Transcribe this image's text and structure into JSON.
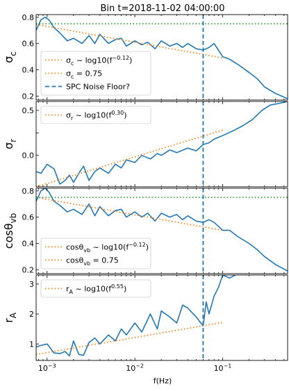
{
  "title": "Bin t=2018-11-02 04:00:00",
  "xlabel": "f(Hz)",
  "colors": {
    "signal": "#1f77b4",
    "fit": "#ff7f0e",
    "reference": "#2ca02c",
    "noise_floor": "#1f77b4"
  },
  "chart_data": [
    {
      "type": "line",
      "ylabel": "σ_c",
      "x_scale": "log",
      "xlim": [
        0.00075,
        0.55
      ],
      "ylim": [
        0.17,
        0.82
      ],
      "yticks": [
        0.2,
        0.4,
        0.6,
        0.8
      ],
      "ytick_labels": [
        "0.2",
        "0.4",
        "0.6",
        "0.8"
      ],
      "legend": [
        "σ_c ~ log10(f^-0.12)",
        "σ_c = 0.75",
        "SPC Noise Floor?"
      ],
      "legend_position": "lower-left",
      "series": [
        {
          "kind": "signal",
          "x": [
            0.00075,
            0.00085,
            0.00095,
            0.00105,
            0.0012,
            0.0014,
            0.0017,
            0.002,
            0.0025,
            0.003,
            0.0035,
            0.004,
            0.005,
            0.006,
            0.007,
            0.008,
            0.01,
            0.012,
            0.014,
            0.017,
            0.02,
            0.025,
            0.03,
            0.035,
            0.04,
            0.05,
            0.06,
            0.07,
            0.08,
            0.1,
            0.12,
            0.15,
            0.2,
            0.25,
            0.3,
            0.4,
            0.55
          ],
          "y": [
            0.7,
            0.78,
            0.8,
            0.78,
            0.72,
            0.68,
            0.62,
            0.64,
            0.6,
            0.66,
            0.6,
            0.67,
            0.6,
            0.63,
            0.64,
            0.58,
            0.62,
            0.59,
            0.61,
            0.56,
            0.62,
            0.58,
            0.6,
            0.57,
            0.6,
            0.56,
            0.55,
            0.57,
            0.6,
            0.5,
            0.48,
            0.44,
            0.38,
            0.33,
            0.27,
            0.22,
            0.18
          ]
        },
        {
          "kind": "fit",
          "coef": -0.12,
          "x": [
            0.00075,
            0.1
          ],
          "y": [
            0.745,
            0.49
          ]
        },
        {
          "kind": "reference",
          "y": 0.75
        }
      ],
      "vline": 0.06
    },
    {
      "type": "line",
      "ylabel": "σ_r",
      "x_scale": "log",
      "xlim": [
        0.00075,
        0.55
      ],
      "ylim": [
        -0.35,
        0.6
      ],
      "yticks": [
        0.0,
        0.25,
        0.5
      ],
      "ytick_labels": [
        "0.0",
        "",
        "0.5"
      ],
      "legend": [
        "σ_r ~ log10(f^0.30)"
      ],
      "legend_position": "upper-left",
      "series": [
        {
          "kind": "signal",
          "x": [
            0.00075,
            0.00085,
            0.001,
            0.0012,
            0.0014,
            0.0016,
            0.0018,
            0.002,
            0.0023,
            0.0026,
            0.003,
            0.0035,
            0.004,
            0.005,
            0.006,
            0.007,
            0.008,
            0.01,
            0.012,
            0.015,
            0.018,
            0.02,
            0.025,
            0.03,
            0.04,
            0.05,
            0.06,
            0.07,
            0.08,
            0.1,
            0.13,
            0.17,
            0.22,
            0.28,
            0.35,
            0.45,
            0.55
          ],
          "y": [
            -0.18,
            -0.2,
            -0.1,
            -0.15,
            -0.32,
            -0.28,
            -0.22,
            -0.3,
            -0.2,
            -0.12,
            -0.28,
            -0.18,
            -0.14,
            -0.2,
            -0.1,
            -0.14,
            -0.05,
            -0.08,
            0.0,
            -0.04,
            0.02,
            0.0,
            0.06,
            0.03,
            0.08,
            0.05,
            0.12,
            0.14,
            0.18,
            0.22,
            0.27,
            0.33,
            0.4,
            0.5,
            0.56,
            0.58,
            0.6
          ]
        },
        {
          "kind": "fit",
          "coef": 0.3,
          "x": [
            0.00075,
            0.1
          ],
          "y": [
            -0.35,
            0.28
          ]
        }
      ],
      "vline": 0.06
    },
    {
      "type": "line",
      "ylabel": "cosθ_vb",
      "x_scale": "log",
      "xlim": [
        0.00075,
        0.55
      ],
      "ylim": [
        0.17,
        0.82
      ],
      "yticks": [
        0.2,
        0.4,
        0.6,
        0.8
      ],
      "ytick_labels": [
        "0.2",
        "0.4",
        "0.6",
        "0.8"
      ],
      "legend": [
        "cosθ_vb ~ log10(f^-0.12)",
        "cosθ_vb = 0.75"
      ],
      "legend_position": "lower-left",
      "series": [
        {
          "kind": "signal",
          "x": [
            0.00075,
            0.00085,
            0.00095,
            0.00105,
            0.0012,
            0.0014,
            0.0017,
            0.002,
            0.0025,
            0.003,
            0.0035,
            0.004,
            0.005,
            0.006,
            0.007,
            0.008,
            0.01,
            0.012,
            0.014,
            0.017,
            0.02,
            0.025,
            0.03,
            0.035,
            0.04,
            0.05,
            0.06,
            0.07,
            0.08,
            0.1,
            0.12,
            0.15,
            0.2,
            0.25,
            0.3,
            0.4,
            0.55
          ],
          "y": [
            0.72,
            0.8,
            0.82,
            0.79,
            0.72,
            0.69,
            0.64,
            0.66,
            0.62,
            0.7,
            0.61,
            0.68,
            0.61,
            0.65,
            0.66,
            0.6,
            0.64,
            0.6,
            0.63,
            0.57,
            0.63,
            0.6,
            0.62,
            0.58,
            0.61,
            0.57,
            0.56,
            0.58,
            0.56,
            0.5,
            0.5,
            0.45,
            0.4,
            0.35,
            0.3,
            0.24,
            0.19
          ]
        },
        {
          "kind": "fit",
          "coef": -0.12,
          "x": [
            0.00075,
            0.1
          ],
          "y": [
            0.75,
            0.5
          ]
        },
        {
          "kind": "reference",
          "y": 0.75
        }
      ],
      "vline": 0.06
    },
    {
      "type": "line",
      "ylabel": "r_A",
      "x_scale": "log",
      "xlim": [
        0.00075,
        0.55
      ],
      "ylim": [
        0.45,
        3.3
      ],
      "yticks": [
        1,
        2,
        3
      ],
      "ytick_labels": [
        "1",
        "2",
        "3"
      ],
      "legend": [
        "r_A ~ log10(f^0.55)"
      ],
      "legend_position": "upper-left",
      "series": [
        {
          "kind": "signal",
          "x": [
            0.00075,
            0.00085,
            0.001,
            0.0012,
            0.0014,
            0.0016,
            0.0018,
            0.002,
            0.0023,
            0.0026,
            0.003,
            0.0035,
            0.004,
            0.005,
            0.006,
            0.007,
            0.008,
            0.01,
            0.012,
            0.015,
            0.018,
            0.02,
            0.025,
            0.03,
            0.035,
            0.04,
            0.05,
            0.06,
            0.065,
            0.07,
            0.08,
            0.09,
            0.1,
            0.12,
            0.14
          ],
          "y": [
            0.9,
            0.95,
            1.0,
            0.7,
            0.68,
            0.75,
            0.6,
            1.1,
            0.65,
            0.62,
            1.05,
            1.2,
            1.0,
            1.3,
            1.1,
            1.5,
            1.3,
            1.7,
            1.4,
            2.0,
            1.5,
            2.1,
            1.9,
            1.7,
            2.3,
            2.2,
            1.9,
            1.6,
            2.4,
            2.0,
            2.6,
            2.9,
            3.3,
            3.2,
            3.3
          ]
        },
        {
          "kind": "fit",
          "coef": 0.55,
          "x": [
            0.00075,
            0.1
          ],
          "y": [
            0.65,
            1.72
          ]
        }
      ],
      "vline": 0.06
    }
  ],
  "xticks": [
    {
      "value": 0.001,
      "label": "10^-3"
    },
    {
      "value": 0.01,
      "label": "10^-2"
    },
    {
      "value": 0.1,
      "label": "10^-1"
    }
  ]
}
